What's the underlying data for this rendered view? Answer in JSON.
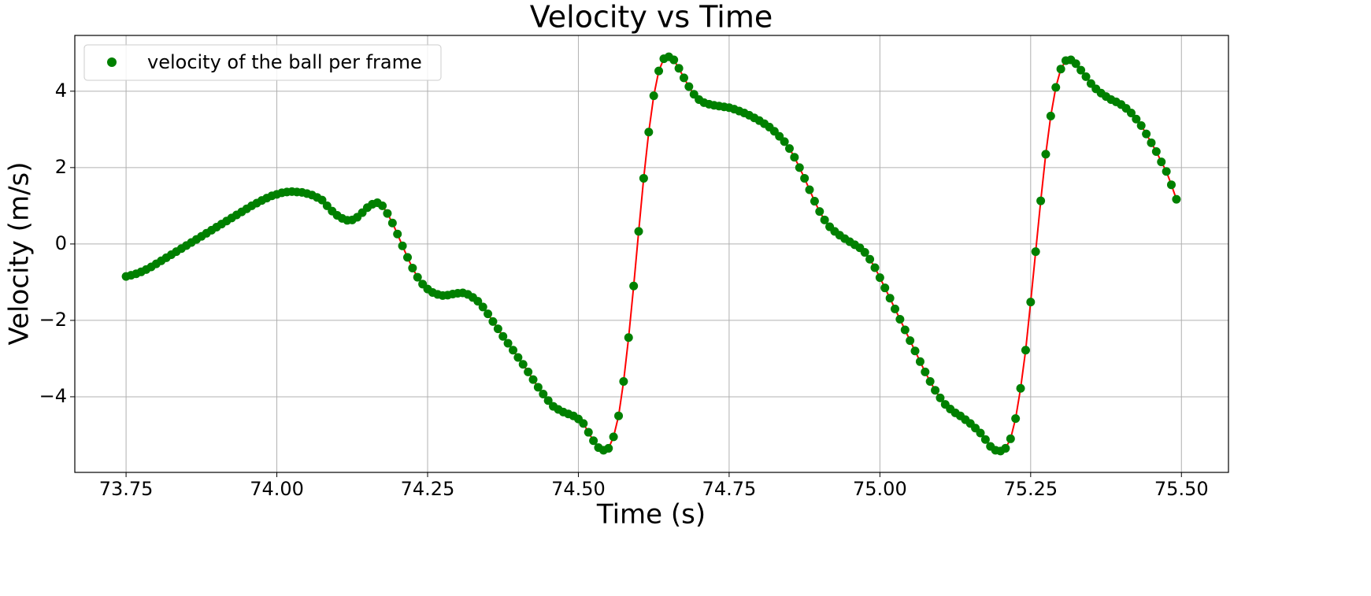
{
  "chart_data": {
    "type": "line_scatter",
    "title": "Velocity vs Time",
    "xlabel": "Time (s)",
    "ylabel": "Velocity (m/s)",
    "x": [
      73.75,
      73.7583,
      73.7667,
      73.775,
      73.7833,
      73.7917,
      73.8,
      73.8083,
      73.8167,
      73.825,
      73.8333,
      73.8417,
      73.85,
      73.8583,
      73.8667,
      73.875,
      73.8833,
      73.8917,
      73.9,
      73.9083,
      73.9167,
      73.925,
      73.9333,
      73.9417,
      73.95,
      73.9583,
      73.9667,
      73.975,
      73.9833,
      73.9917,
      74,
      74.0083,
      74.0167,
      74.025,
      74.0333,
      74.0417,
      74.05,
      74.0583,
      74.0667,
      74.075,
      74.0833,
      74.0917,
      74.1,
      74.1083,
      74.1167,
      74.125,
      74.1333,
      74.1417,
      74.15,
      74.1583,
      74.1667,
      74.175,
      74.1833,
      74.1917,
      74.2,
      74.2083,
      74.2167,
      74.225,
      74.2333,
      74.2417,
      74.25,
      74.2583,
      74.2667,
      74.275,
      74.2833,
      74.2917,
      74.3,
      74.3083,
      74.3167,
      74.325,
      74.3333,
      74.3417,
      74.35,
      74.3583,
      74.3667,
      74.375,
      74.3833,
      74.3917,
      74.4,
      74.4083,
      74.4167,
      74.425,
      74.4333,
      74.4417,
      74.45,
      74.4583,
      74.4667,
      74.475,
      74.4833,
      74.4917,
      74.5,
      74.5083,
      74.5167,
      74.525,
      74.5333,
      74.5417,
      74.55,
      74.5583,
      74.5667,
      74.575,
      74.5833,
      74.5917,
      74.6,
      74.6083,
      74.6167,
      74.625,
      74.6333,
      74.6417,
      74.65,
      74.6583,
      74.6667,
      74.675,
      74.6833,
      74.6917,
      74.7,
      74.7083,
      74.7167,
      74.725,
      74.7333,
      74.7417,
      74.75,
      74.7583,
      74.7667,
      74.775,
      74.7833,
      74.7917,
      74.8,
      74.8083,
      74.8167,
      74.825,
      74.8333,
      74.8417,
      74.85,
      74.8583,
      74.8667,
      74.875,
      74.8833,
      74.8917,
      74.9,
      74.9083,
      74.9167,
      74.925,
      74.9333,
      74.9417,
      74.95,
      74.9583,
      74.9667,
      74.975,
      74.9833,
      74.9917,
      75,
      75.0083,
      75.0167,
      75.025,
      75.0333,
      75.0417,
      75.05,
      75.0583,
      75.0667,
      75.075,
      75.0833,
      75.0917,
      75.1,
      75.1083,
      75.1167,
      75.125,
      75.1333,
      75.1417,
      75.15,
      75.1583,
      75.1667,
      75.175,
      75.1833,
      75.1917,
      75.2,
      75.2083,
      75.2167,
      75.225,
      75.2333,
      75.2417,
      75.25,
      75.2583,
      75.2667,
      75.275,
      75.2833,
      75.2917,
      75.3,
      75.3083,
      75.3167,
      75.325,
      75.3333,
      75.3417,
      75.35,
      75.3583,
      75.3667,
      75.375,
      75.3833,
      75.3917,
      75.4,
      75.4083,
      75.4167,
      75.425,
      75.4333,
      75.4417,
      75.45,
      75.4583,
      75.4667,
      75.475,
      75.4833,
      75.4917
    ],
    "series": [
      {
        "name": "velocity of the ball per frame",
        "color": "#008000",
        "line_color": "#ff0000",
        "values": [
          -0.85,
          -0.82,
          -0.78,
          -0.73,
          -0.67,
          -0.6,
          -0.52,
          -0.44,
          -0.36,
          -0.28,
          -0.2,
          -0.12,
          -0.04,
          0.04,
          0.12,
          0.2,
          0.28,
          0.36,
          0.44,
          0.52,
          0.6,
          0.68,
          0.76,
          0.84,
          0.92,
          1.0,
          1.07,
          1.14,
          1.2,
          1.26,
          1.3,
          1.34,
          1.36,
          1.37,
          1.36,
          1.35,
          1.32,
          1.28,
          1.22,
          1.15,
          1.0,
          0.86,
          0.75,
          0.67,
          0.62,
          0.63,
          0.7,
          0.82,
          0.95,
          1.04,
          1.08,
          1.0,
          0.8,
          0.55,
          0.26,
          -0.05,
          -0.35,
          -0.63,
          -0.87,
          -1.05,
          -1.18,
          -1.27,
          -1.32,
          -1.35,
          -1.34,
          -1.31,
          -1.29,
          -1.28,
          -1.32,
          -1.4,
          -1.5,
          -1.65,
          -1.83,
          -2.03,
          -2.22,
          -2.42,
          -2.6,
          -2.78,
          -2.97,
          -3.15,
          -3.35,
          -3.55,
          -3.75,
          -3.93,
          -4.1,
          -4.25,
          -4.33,
          -4.4,
          -4.45,
          -4.5,
          -4.58,
          -4.7,
          -4.93,
          -5.15,
          -5.33,
          -5.4,
          -5.35,
          -5.05,
          -4.5,
          -3.6,
          -2.45,
          -1.1,
          0.33,
          1.72,
          2.93,
          3.88,
          4.53,
          4.85,
          4.9,
          4.82,
          4.6,
          4.35,
          4.12,
          3.92,
          3.78,
          3.7,
          3.66,
          3.63,
          3.61,
          3.59,
          3.57,
          3.53,
          3.48,
          3.43,
          3.37,
          3.3,
          3.23,
          3.15,
          3.06,
          2.95,
          2.82,
          2.68,
          2.5,
          2.27,
          2.0,
          1.72,
          1.42,
          1.12,
          0.85,
          0.63,
          0.45,
          0.33,
          0.23,
          0.14,
          0.06,
          -0.02,
          -0.1,
          -0.22,
          -0.4,
          -0.62,
          -0.88,
          -1.15,
          -1.42,
          -1.7,
          -1.97,
          -2.25,
          -2.53,
          -2.8,
          -3.08,
          -3.35,
          -3.6,
          -3.83,
          -4.03,
          -4.2,
          -4.32,
          -4.42,
          -4.5,
          -4.6,
          -4.7,
          -4.82,
          -4.95,
          -5.12,
          -5.3,
          -5.4,
          -5.42,
          -5.35,
          -5.1,
          -4.57,
          -3.78,
          -2.78,
          -1.52,
          -0.2,
          1.13,
          2.35,
          3.35,
          4.1,
          4.58,
          4.8,
          4.82,
          4.72,
          4.55,
          4.38,
          4.2,
          4.06,
          3.95,
          3.86,
          3.78,
          3.72,
          3.65,
          3.55,
          3.43,
          3.27,
          3.1,
          2.88,
          2.65,
          2.42,
          2.15,
          1.9,
          1.55,
          1.17
        ]
      }
    ],
    "xlim": [
      73.665,
      75.578
    ],
    "ylim": [
      -5.98,
      5.46
    ],
    "xticks": [
      73.75,
      {
        "value": 74,
        "label": "74.00"
      },
      74.25,
      {
        "value": 74.5,
        "label": "74.50"
      },
      74.75,
      {
        "value": 75,
        "label": "75.00"
      },
      75.25,
      {
        "value": 75.5,
        "label": "75.50"
      }
    ],
    "yticks": [
      {
        "value": -4,
        "label": "−4"
      },
      {
        "value": -2,
        "label": "−2"
      },
      0,
      2,
      4
    ],
    "grid": true,
    "legend": "upper left"
  }
}
